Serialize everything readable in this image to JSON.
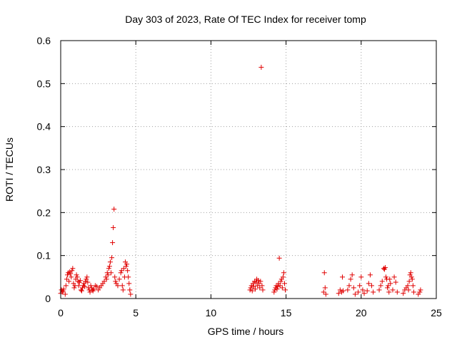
{
  "chart_data": {
    "type": "scatter",
    "title": "Day 303 of 2023, Rate Of TEC Index for receiver tomp",
    "xlabel": "GPS time / hours",
    "ylabel": "ROTI / TECUs",
    "xlim": [
      0,
      25
    ],
    "ylim": [
      0,
      0.6
    ],
    "xticks": [
      0,
      5,
      10,
      15,
      20,
      25
    ],
    "yticks": [
      0,
      0.1,
      0.2,
      0.3,
      0.4,
      0.5,
      0.6
    ],
    "xtick_labels": [
      "0",
      "5",
      "10",
      "15",
      "20",
      "25"
    ],
    "ytick_labels": [
      "0",
      "0.1",
      "0.2",
      "0.3",
      "0.4",
      "0.5",
      "0.6"
    ],
    "grid": true,
    "marker": "+",
    "color": "#e00000",
    "series": [
      {
        "name": "ROTI",
        "points": [
          [
            0.0,
            0.012
          ],
          [
            0.05,
            0.02
          ],
          [
            0.1,
            0.015
          ],
          [
            0.15,
            0.018
          ],
          [
            0.2,
            0.022
          ],
          [
            0.3,
            0.01
          ],
          [
            0.35,
            0.03
          ],
          [
            0.4,
            0.045
          ],
          [
            0.45,
            0.055
          ],
          [
            0.5,
            0.06
          ],
          [
            0.55,
            0.04
          ],
          [
            0.6,
            0.062
          ],
          [
            0.65,
            0.058
          ],
          [
            0.7,
            0.05
          ],
          [
            0.75,
            0.065
          ],
          [
            0.8,
            0.07
          ],
          [
            0.85,
            0.035
          ],
          [
            0.9,
            0.025
          ],
          [
            0.95,
            0.03
          ],
          [
            1.0,
            0.045
          ],
          [
            1.05,
            0.055
          ],
          [
            1.1,
            0.05
          ],
          [
            1.15,
            0.04
          ],
          [
            1.2,
            0.03
          ],
          [
            1.25,
            0.038
          ],
          [
            1.3,
            0.042
          ],
          [
            1.35,
            0.02
          ],
          [
            1.4,
            0.018
          ],
          [
            1.45,
            0.025
          ],
          [
            1.5,
            0.03
          ],
          [
            1.55,
            0.035
          ],
          [
            1.6,
            0.028
          ],
          [
            1.65,
            0.04
          ],
          [
            1.7,
            0.045
          ],
          [
            1.75,
            0.05
          ],
          [
            1.8,
            0.038
          ],
          [
            1.85,
            0.025
          ],
          [
            1.9,
            0.02
          ],
          [
            1.95,
            0.015
          ],
          [
            2.0,
            0.03
          ],
          [
            2.05,
            0.025
          ],
          [
            2.1,
            0.02
          ],
          [
            2.15,
            0.018
          ],
          [
            2.2,
            0.022
          ],
          [
            2.3,
            0.03
          ],
          [
            2.4,
            0.028
          ],
          [
            2.5,
            0.02
          ],
          [
            2.6,
            0.025
          ],
          [
            2.7,
            0.03
          ],
          [
            2.8,
            0.035
          ],
          [
            2.9,
            0.04
          ],
          [
            3.0,
            0.05
          ],
          [
            3.05,
            0.045
          ],
          [
            3.1,
            0.06
          ],
          [
            3.15,
            0.055
          ],
          [
            3.2,
            0.07
          ],
          [
            3.25,
            0.075
          ],
          [
            3.3,
            0.085
          ],
          [
            3.35,
            0.06
          ],
          [
            3.4,
            0.095
          ],
          [
            3.45,
            0.13
          ],
          [
            3.5,
            0.165
          ],
          [
            3.55,
            0.208
          ],
          [
            3.6,
            0.05
          ],
          [
            3.65,
            0.04
          ],
          [
            3.7,
            0.035
          ],
          [
            3.8,
            0.03
          ],
          [
            3.9,
            0.045
          ],
          [
            4.0,
            0.06
          ],
          [
            4.05,
            0.065
          ],
          [
            4.1,
            0.03
          ],
          [
            4.15,
            0.02
          ],
          [
            4.2,
            0.07
          ],
          [
            4.25,
            0.05
          ],
          [
            4.3,
            0.085
          ],
          [
            4.35,
            0.075
          ],
          [
            4.4,
            0.08
          ],
          [
            4.45,
            0.065
          ],
          [
            4.5,
            0.05
          ],
          [
            4.55,
            0.035
          ],
          [
            4.6,
            0.02
          ],
          [
            4.65,
            0.01
          ],
          [
            12.6,
            0.02
          ],
          [
            12.65,
            0.025
          ],
          [
            12.7,
            0.03
          ],
          [
            12.75,
            0.018
          ],
          [
            12.8,
            0.035
          ],
          [
            12.85,
            0.028
          ],
          [
            12.9,
            0.04
          ],
          [
            12.95,
            0.022
          ],
          [
            13.0,
            0.038
          ],
          [
            13.05,
            0.045
          ],
          [
            13.1,
            0.03
          ],
          [
            13.15,
            0.042
          ],
          [
            13.2,
            0.035
          ],
          [
            13.25,
            0.025
          ],
          [
            13.3,
            0.04
          ],
          [
            13.35,
            0.538
          ],
          [
            13.4,
            0.03
          ],
          [
            13.45,
            0.02
          ],
          [
            14.2,
            0.015
          ],
          [
            14.25,
            0.02
          ],
          [
            14.3,
            0.025
          ],
          [
            14.35,
            0.03
          ],
          [
            14.4,
            0.022
          ],
          [
            14.45,
            0.028
          ],
          [
            14.5,
            0.035
          ],
          [
            14.55,
            0.094
          ],
          [
            14.6,
            0.03
          ],
          [
            14.65,
            0.04
          ],
          [
            14.7,
            0.045
          ],
          [
            14.75,
            0.025
          ],
          [
            14.8,
            0.05
          ],
          [
            14.85,
            0.06
          ],
          [
            14.9,
            0.035
          ],
          [
            14.95,
            0.02
          ],
          [
            17.5,
            0.015
          ],
          [
            17.55,
            0.06
          ],
          [
            17.6,
            0.025
          ],
          [
            17.65,
            0.01
          ],
          [
            18.5,
            0.012
          ],
          [
            18.6,
            0.02
          ],
          [
            18.7,
            0.015
          ],
          [
            18.75,
            0.05
          ],
          [
            18.8,
            0.018
          ],
          [
            19.1,
            0.02
          ],
          [
            19.2,
            0.03
          ],
          [
            19.3,
            0.045
          ],
          [
            19.4,
            0.055
          ],
          [
            19.5,
            0.025
          ],
          [
            19.6,
            0.01
          ],
          [
            19.8,
            0.015
          ],
          [
            19.9,
            0.03
          ],
          [
            20.0,
            0.05
          ],
          [
            20.1,
            0.02
          ],
          [
            20.2,
            0.012
          ],
          [
            20.4,
            0.018
          ],
          [
            20.5,
            0.035
          ],
          [
            20.6,
            0.055
          ],
          [
            20.7,
            0.03
          ],
          [
            20.8,
            0.015
          ],
          [
            21.2,
            0.02
          ],
          [
            21.3,
            0.03
          ],
          [
            21.4,
            0.04
          ],
          [
            21.5,
            0.07
          ],
          [
            21.55,
            0.068
          ],
          [
            21.6,
            0.072
          ],
          [
            21.65,
            0.05
          ],
          [
            21.7,
            0.045
          ],
          [
            21.75,
            0.025
          ],
          [
            21.8,
            0.03
          ],
          [
            21.85,
            0.015
          ],
          [
            21.9,
            0.045
          ],
          [
            21.95,
            0.035
          ],
          [
            22.1,
            0.02
          ],
          [
            22.2,
            0.05
          ],
          [
            22.3,
            0.038
          ],
          [
            22.4,
            0.015
          ],
          [
            22.8,
            0.012
          ],
          [
            22.9,
            0.02
          ],
          [
            23.0,
            0.025
          ],
          [
            23.1,
            0.03
          ],
          [
            23.15,
            0.02
          ],
          [
            23.2,
            0.04
          ],
          [
            23.25,
            0.055
          ],
          [
            23.3,
            0.06
          ],
          [
            23.35,
            0.05
          ],
          [
            23.4,
            0.045
          ],
          [
            23.45,
            0.03
          ],
          [
            23.5,
            0.015
          ],
          [
            23.8,
            0.01
          ],
          [
            23.9,
            0.015
          ],
          [
            23.95,
            0.02
          ]
        ]
      }
    ]
  }
}
